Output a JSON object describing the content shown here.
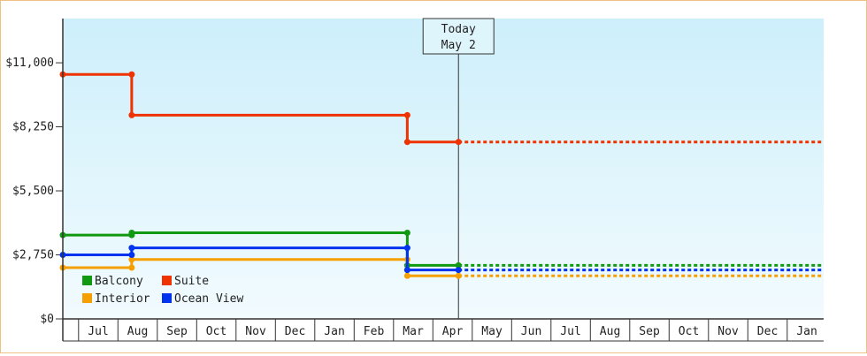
{
  "chart_data": {
    "type": "line",
    "step": true,
    "y_ticks": [
      "$0",
      "$2,750",
      "$5,500",
      "$8,250",
      "$11,000"
    ],
    "y_tick_values": [
      0,
      2750,
      5500,
      8250,
      11000
    ],
    "ylim": [
      0,
      12900
    ],
    "months": [
      "Jul",
      "Aug",
      "Sep",
      "Oct",
      "Nov",
      "Dec",
      "Jan",
      "Feb",
      "Mar",
      "Apr",
      "May",
      "Jun",
      "Jul",
      "Aug",
      "Sep",
      "Oct",
      "Nov",
      "Dec",
      "Jan"
    ],
    "x_range_months": [
      0,
      19.3
    ],
    "today": {
      "line1": "Today",
      "line2": "May 2",
      "x": 10.05
    },
    "grid": false,
    "legend_position": "bottom-left",
    "series": [
      {
        "name": "Balcony",
        "color": "#119911",
        "points": [
          [
            0,
            3600
          ],
          [
            1.75,
            3600
          ],
          [
            1.75,
            3700
          ],
          [
            8.75,
            3700
          ],
          [
            8.75,
            2300
          ],
          [
            10.05,
            2300
          ]
        ],
        "projected": 2300
      },
      {
        "name": "Suite",
        "color": "#ee3300",
        "points": [
          [
            0,
            10500
          ],
          [
            1.75,
            10500
          ],
          [
            1.75,
            8750
          ],
          [
            8.75,
            8750
          ],
          [
            8.75,
            7600
          ],
          [
            10.05,
            7600
          ]
        ],
        "projected": 7600
      },
      {
        "name": "Interior",
        "color": "#f5a000",
        "points": [
          [
            0,
            2200
          ],
          [
            1.75,
            2200
          ],
          [
            1.75,
            2550
          ],
          [
            8.75,
            2550
          ],
          [
            8.75,
            1850
          ],
          [
            10.05,
            1850
          ]
        ],
        "projected": 1850
      },
      {
        "name": "Ocean View",
        "color": "#0033ee",
        "points": [
          [
            0,
            2750
          ],
          [
            1.75,
            2750
          ],
          [
            1.75,
            3050
          ],
          [
            8.75,
            3050
          ],
          [
            8.75,
            2100
          ],
          [
            10.05,
            2100
          ]
        ],
        "projected": 2100
      }
    ]
  }
}
